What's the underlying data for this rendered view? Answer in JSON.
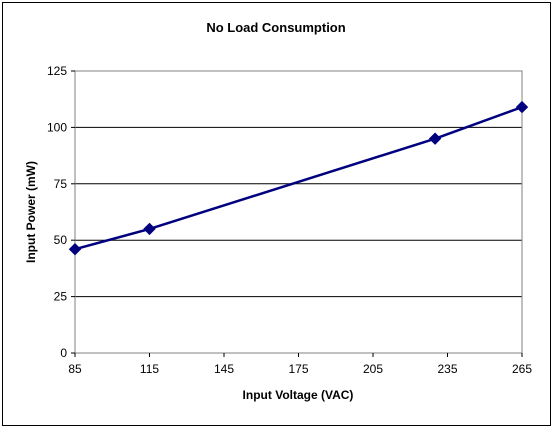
{
  "chart_data": {
    "type": "line",
    "title": "No Load Consumption",
    "xlabel": "Input Voltage (VAC)",
    "ylabel": "Input Power (mW)",
    "xlim": [
      85,
      265
    ],
    "ylim": [
      0,
      125
    ],
    "x_ticks": [
      "85",
      "115",
      "145",
      "175",
      "205",
      "235",
      "265"
    ],
    "y_ticks": [
      "0",
      "25",
      "50",
      "75",
      "100",
      "125"
    ],
    "grid": "horizontal",
    "legend": "none",
    "series": [
      {
        "color": "#00007f",
        "marker": "diamond",
        "x": [
          85,
          115,
          230,
          265
        ],
        "y": [
          46,
          55,
          95,
          109
        ]
      }
    ]
  }
}
